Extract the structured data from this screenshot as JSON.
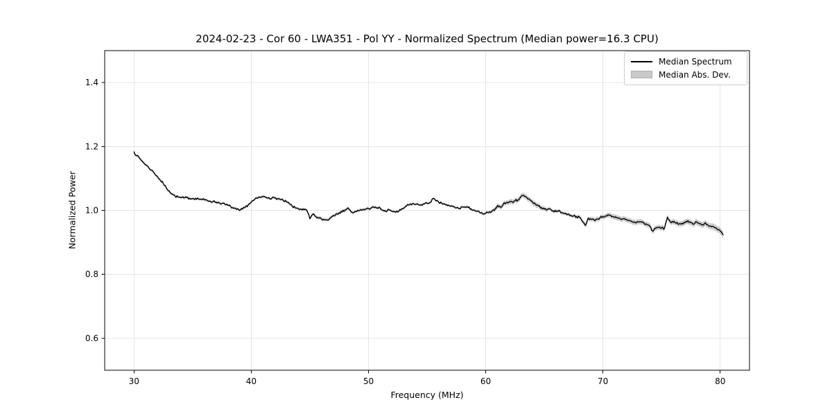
{
  "chart_data": {
    "type": "line",
    "title": "2024-02-23 - Cor 60 - LWA351 - Pol YY - Normalized Spectrum (Median power=16.3 CPU)",
    "xlabel": "Frequency (MHz)",
    "ylabel": "Normalized Power",
    "xlim": [
      27.5,
      82.5
    ],
    "ylim": [
      0.5,
      1.5
    ],
    "xticks": [
      "30",
      "40",
      "50",
      "60",
      "70",
      "80"
    ],
    "yticks": [
      "0.6",
      "0.8",
      "1.0",
      "1.2",
      "1.4"
    ],
    "grid": true,
    "legend_position": "upper right",
    "colors": {
      "line": "#000000",
      "band": "#c6c6c6",
      "grid": "#e4e4e4",
      "frame": "#000000",
      "legend_border": "#cccccc"
    },
    "noise_amplitude": 0.0035,
    "series": [
      {
        "name": "Median Spectrum",
        "kind": "line",
        "f_start": 30.0,
        "f_step": 0.25,
        "values": [
          1.183,
          1.171,
          1.162,
          1.152,
          1.143,
          1.134,
          1.126,
          1.116,
          1.106,
          1.094,
          1.084,
          1.071,
          1.061,
          1.051,
          1.045,
          1.042,
          1.04,
          1.039,
          1.04,
          1.038,
          1.037,
          1.038,
          1.036,
          1.035,
          1.033,
          1.031,
          1.029,
          1.028,
          1.026,
          1.024,
          1.022,
          1.019,
          1.016,
          1.012,
          1.007,
          1.003,
          1.0,
          1.004,
          1.01,
          1.018,
          1.026,
          1.033,
          1.038,
          1.041,
          1.043,
          1.041,
          1.04,
          1.038,
          1.039,
          1.037,
          1.034,
          1.03,
          1.027,
          1.021,
          1.013,
          1.008,
          1.006,
          1.004,
          1.002,
          1.0,
          0.974,
          0.988,
          0.981,
          0.976,
          0.973,
          0.971,
          0.97,
          0.977,
          0.984,
          0.99,
          0.993,
          0.995,
          1.002,
          1.008,
          0.996,
          0.993,
          0.997,
          1.0,
          1.002,
          1.004,
          1.006,
          1.008,
          1.009,
          1.008,
          1.007,
          1.0,
          0.996,
          1.002,
          0.998,
          0.996,
          0.995,
          1.001,
          1.007,
          1.014,
          1.018,
          1.021,
          1.019,
          1.018,
          1.018,
          1.02,
          1.022,
          1.025,
          1.037,
          1.03,
          1.025,
          1.022,
          1.02,
          1.015,
          1.013,
          1.012,
          1.008,
          1.006,
          1.011,
          1.01,
          1.009,
          1.005,
          1.001,
          0.997,
          0.993,
          0.989,
          0.991,
          0.993,
          0.996,
          1.0,
          1.016,
          1.01,
          1.02,
          1.024,
          1.026,
          1.027,
          1.03,
          1.033,
          1.043,
          1.047,
          1.041,
          1.034,
          1.026,
          1.019,
          1.014,
          1.009,
          1.004,
          1.002,
          1.005,
          0.999,
          0.996,
          1.0,
          0.993,
          0.99,
          0.988,
          0.985,
          0.983,
          0.981,
          0.978,
          0.966,
          0.953,
          0.976,
          0.972,
          0.97,
          0.973,
          0.977,
          0.981,
          0.983,
          0.985,
          0.98,
          0.978,
          0.976,
          0.973,
          0.974,
          0.972,
          0.968,
          0.964,
          0.962,
          0.964,
          0.965,
          0.96,
          0.956,
          0.951,
          0.935,
          0.944,
          0.947,
          0.945,
          0.944,
          0.979,
          0.964,
          0.963,
          0.96,
          0.958,
          0.96,
          0.962,
          0.968,
          0.962,
          0.957,
          0.964,
          0.958,
          0.955,
          0.961,
          0.952,
          0.949,
          0.947,
          0.941,
          0.936,
          0.924
        ]
      },
      {
        "name": "Median Abs. Dev.",
        "kind": "band",
        "around": "Median Spectrum",
        "half_width_points": [
          [
            30,
            0.004
          ],
          [
            44,
            0.004
          ],
          [
            45,
            0.005
          ],
          [
            47,
            0.005
          ],
          [
            55,
            0.0035
          ],
          [
            60,
            0.004
          ],
          [
            61,
            0.007
          ],
          [
            63,
            0.008
          ],
          [
            64.5,
            0.008
          ],
          [
            65.5,
            0.005
          ],
          [
            67.5,
            0.005
          ],
          [
            68.5,
            0.007
          ],
          [
            70,
            0.007
          ],
          [
            71,
            0.008
          ],
          [
            75,
            0.008
          ],
          [
            78,
            0.009
          ],
          [
            80,
            0.01
          ],
          [
            80.25,
            0.011
          ]
        ]
      }
    ]
  }
}
